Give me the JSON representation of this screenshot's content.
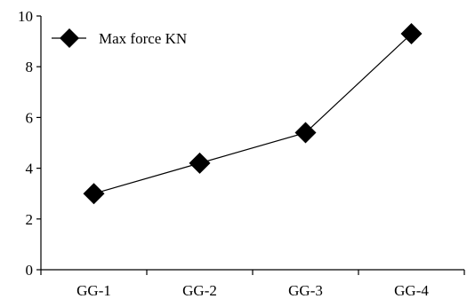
{
  "chart_data": {
    "type": "line",
    "categories": [
      "GG-1",
      "GG-2",
      "GG-3",
      "GG-4"
    ],
    "series": [
      {
        "name": "Max force KN",
        "values": [
          3.0,
          4.2,
          5.4,
          9.3
        ],
        "color": "#000000",
        "marker": "diamond"
      }
    ],
    "ylim": [
      0,
      10
    ],
    "yticks": [
      0,
      2,
      4,
      6,
      8,
      10
    ],
    "title": "",
    "xlabel": "",
    "ylabel": "",
    "grid": false,
    "legend": {
      "position": "top-left"
    }
  }
}
